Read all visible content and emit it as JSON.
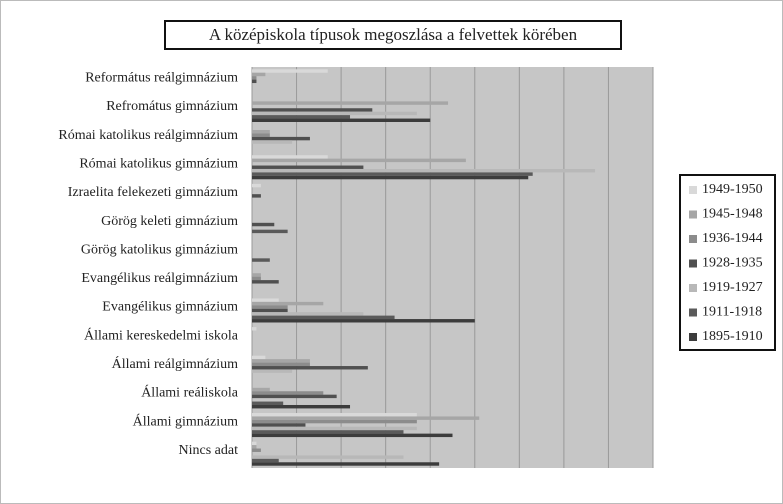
{
  "chart_data": {
    "type": "bar",
    "orientation": "horizontal",
    "title": "A középiskola típusok megoszlása a felvettek körében",
    "categories": [
      "Református reálgimnázium",
      "Refromátus gimnázium",
      "Római katolikus reálgimnázium",
      "Római katolikus gimnázium",
      "Izraelita felekezeti gimnázium",
      "Görög keleti gimnázium",
      "Görög katolikus gimnázium",
      "Evangélikus reálgimnázium",
      "Evangélikus gimnázium",
      "Állami kereskedelmi iskola",
      "Állami reálgimnázium",
      "Állami reáliskola",
      "Állami gimnázium",
      "Nincs adat"
    ],
    "series": [
      {
        "name": "1949-1950",
        "color": "#d9d9d9",
        "values": [
          17,
          0,
          0,
          17,
          2,
          0,
          0,
          0,
          6,
          1,
          3,
          0,
          37,
          1
        ]
      },
      {
        "name": "1945-1948",
        "color": "#a6a6a6",
        "values": [
          3,
          44,
          4,
          48,
          0,
          0,
          0,
          2,
          16,
          0,
          13,
          4,
          51,
          1
        ]
      },
      {
        "name": "1936-1944",
        "color": "#8c8c8c",
        "values": [
          1,
          0,
          4,
          0,
          0,
          0,
          0,
          2,
          8,
          0,
          13,
          16,
          37,
          2
        ]
      },
      {
        "name": "1928-1935",
        "color": "#505050",
        "values": [
          1,
          27,
          13,
          25,
          2,
          5,
          0,
          6,
          8,
          0,
          26,
          19,
          12,
          0
        ]
      },
      {
        "name": "1919-1927",
        "color": "#b8b8b8",
        "values": [
          0,
          37,
          9,
          77,
          0,
          0,
          0,
          0,
          25,
          0,
          9,
          0,
          37,
          34
        ]
      },
      {
        "name": "1911-1918",
        "color": "#5a5a5a",
        "values": [
          0,
          22,
          0,
          63,
          0,
          8,
          4,
          0,
          32,
          0,
          0,
          7,
          34,
          6
        ]
      },
      {
        "name": "1895-1910",
        "color": "#3c3c3c",
        "values": [
          0,
          40,
          0,
          62,
          0,
          0,
          0,
          0,
          50,
          0,
          0,
          22,
          45,
          42
        ]
      }
    ],
    "xlim": [
      0,
      90
    ],
    "xticks": [
      0,
      10,
      20,
      30,
      40,
      50,
      60,
      70,
      80,
      90
    ],
    "grid": true,
    "legend": "right"
  }
}
